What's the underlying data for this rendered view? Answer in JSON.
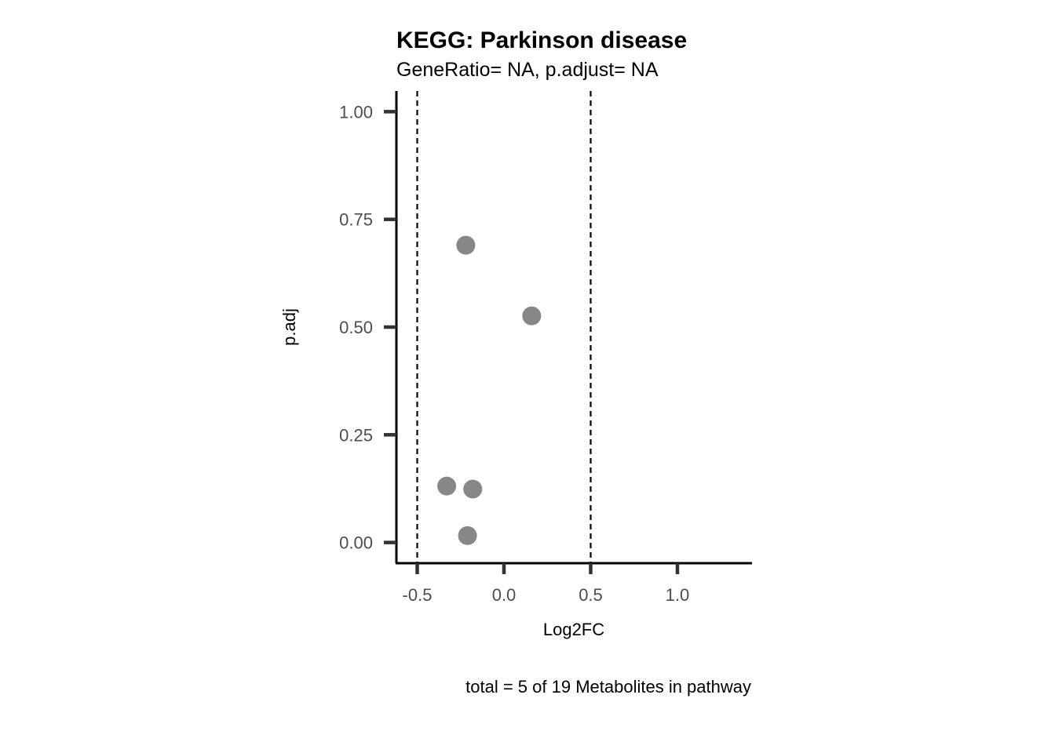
{
  "chart_data": {
    "type": "scatter",
    "title": "KEGG: Parkinson disease",
    "subtitle": "GeneRatio= NA, p.adjust= NA",
    "xlabel": "Log2FC",
    "ylabel": "p.adj",
    "caption": "total = 5 of 19 Metabolites in pathway",
    "xlim": [
      -0.62,
      1.43
    ],
    "ylim": [
      -0.048,
      1.048
    ],
    "x_ticks": [
      {
        "value": -0.5,
        "label": "-0.5"
      },
      {
        "value": 0.0,
        "label": "0.0"
      },
      {
        "value": 0.5,
        "label": "0.5"
      },
      {
        "value": 1.0,
        "label": "1.0"
      }
    ],
    "y_ticks": [
      {
        "value": 0.0,
        "label": "0.00"
      },
      {
        "value": 0.25,
        "label": "0.25"
      },
      {
        "value": 0.5,
        "label": "0.50"
      },
      {
        "value": 0.75,
        "label": "0.75"
      },
      {
        "value": 1.0,
        "label": "1.00"
      }
    ],
    "vlines": [
      -0.5,
      0.5
    ],
    "point_color": "#878787",
    "points": [
      {
        "x": -0.22,
        "y": 0.69
      },
      {
        "x": 0.16,
        "y": 0.526
      },
      {
        "x": -0.33,
        "y": 0.131
      },
      {
        "x": -0.18,
        "y": 0.124
      },
      {
        "x": -0.21,
        "y": 0.016
      }
    ],
    "grid": false,
    "legend": "none"
  }
}
